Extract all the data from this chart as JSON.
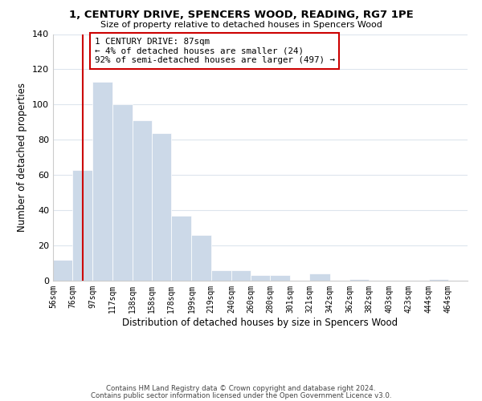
{
  "title": "1, CENTURY DRIVE, SPENCERS WOOD, READING, RG7 1PE",
  "subtitle": "Size of property relative to detached houses in Spencers Wood",
  "xlabel": "Distribution of detached houses by size in Spencers Wood",
  "ylabel": "Number of detached properties",
  "bar_left_edges": [
    56,
    76,
    97,
    117,
    138,
    158,
    178,
    199,
    219,
    240,
    260,
    280,
    301,
    321,
    342,
    362,
    382,
    403,
    423,
    444
  ],
  "bar_heights": [
    12,
    63,
    113,
    100,
    91,
    84,
    37,
    26,
    6,
    6,
    3,
    3,
    0,
    4,
    0,
    1,
    0,
    0,
    0,
    1
  ],
  "bar_widths": [
    20,
    21,
    20,
    21,
    20,
    20,
    21,
    20,
    21,
    20,
    20,
    21,
    20,
    21,
    20,
    20,
    21,
    20,
    21,
    20
  ],
  "bar_color": "#ccd9e8",
  "bar_edge_color": "#ffffff",
  "tick_labels": [
    "56sqm",
    "76sqm",
    "97sqm",
    "117sqm",
    "138sqm",
    "158sqm",
    "178sqm",
    "199sqm",
    "219sqm",
    "240sqm",
    "260sqm",
    "280sqm",
    "301sqm",
    "321sqm",
    "342sqm",
    "362sqm",
    "382sqm",
    "403sqm",
    "423sqm",
    "444sqm",
    "464sqm"
  ],
  "tick_positions": [
    56,
    76,
    97,
    117,
    138,
    158,
    178,
    199,
    219,
    240,
    260,
    280,
    301,
    321,
    342,
    362,
    382,
    403,
    423,
    444,
    464
  ],
  "vertical_line_x": 87,
  "vertical_line_color": "#cc0000",
  "ylim": [
    0,
    140
  ],
  "yticks": [
    0,
    20,
    40,
    60,
    80,
    100,
    120,
    140
  ],
  "annotation_title": "1 CENTURY DRIVE: 87sqm",
  "annotation_line1": "← 4% of detached houses are smaller (24)",
  "annotation_line2": "92% of semi-detached houses are larger (497) →",
  "footer_line1": "Contains HM Land Registry data © Crown copyright and database right 2024.",
  "footer_line2": "Contains public sector information licensed under the Open Government Licence v3.0.",
  "background_color": "#ffffff",
  "grid_color": "#dde5ed"
}
